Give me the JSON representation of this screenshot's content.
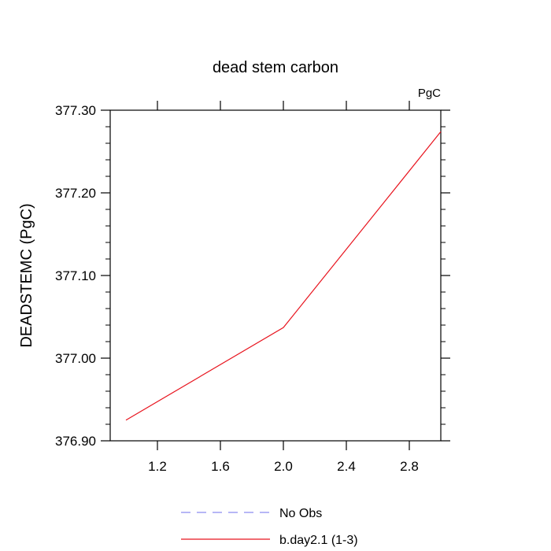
{
  "chart_data": {
    "type": "line",
    "title": "dead stem carbon",
    "units_label": "PgC",
    "ylabel": "DEADSTEMC  (PgC)",
    "xlabel": "",
    "xlim": [
      0.9,
      3.0
    ],
    "ylim": [
      376.9,
      377.3
    ],
    "xticks": [
      1.2,
      1.6,
      2.0,
      2.4,
      2.8
    ],
    "xtick_labels": [
      "1.2",
      "1.6",
      "2.0",
      "2.4",
      "2.8"
    ],
    "yticks": [
      376.9,
      377.0,
      377.1,
      377.2,
      377.3
    ],
    "ytick_labels": [
      "376.90",
      "377.00",
      "377.10",
      "377.20",
      "377.30"
    ],
    "grid": false,
    "legend_position": "bottom",
    "series": [
      {
        "name": "b.day2.1 (1-3)",
        "color": "#e8141e",
        "dash": "solid",
        "x": [
          1.0,
          2.0,
          3.0
        ],
        "y": [
          376.925,
          377.037,
          377.274
        ]
      }
    ],
    "legend": [
      {
        "label": "No Obs",
        "color": "#8c8cf0",
        "dash": "dashed"
      },
      {
        "label": "b.day2.1 (1-3)",
        "color": "#e8141e",
        "dash": "solid"
      }
    ]
  }
}
